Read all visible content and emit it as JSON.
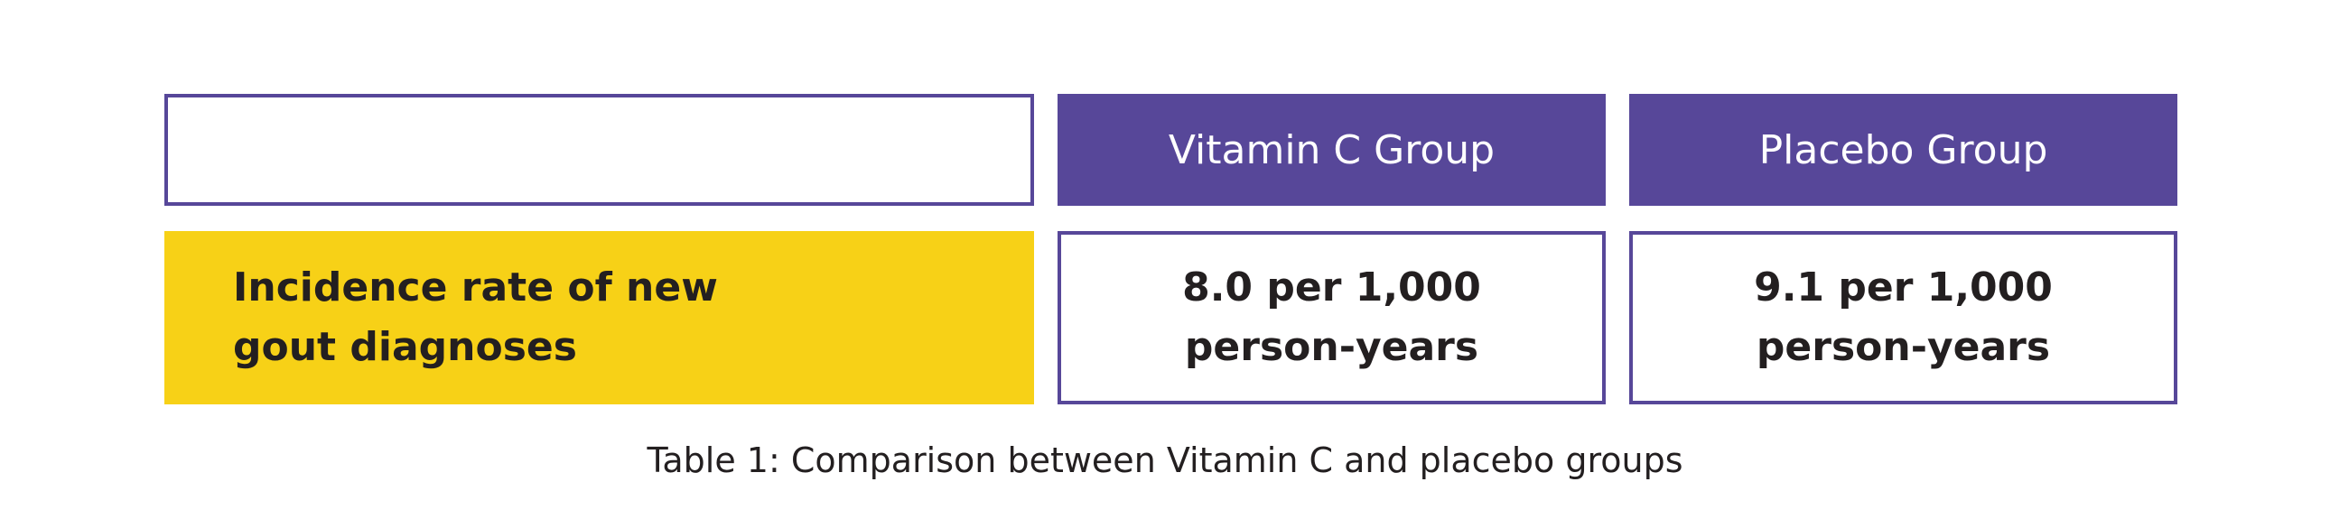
{
  "table": {
    "header": [
      "Vitamin C Group",
      "Placebo Group"
    ],
    "rows": [
      [
        "Incidence rate of new gout diagnoses",
        "8.0 per 1,000 person-years",
        "9.1 per 1,000 person-years"
      ]
    ]
  },
  "caption": "Table 1: Comparison between Vitamin C and placebo groups"
}
